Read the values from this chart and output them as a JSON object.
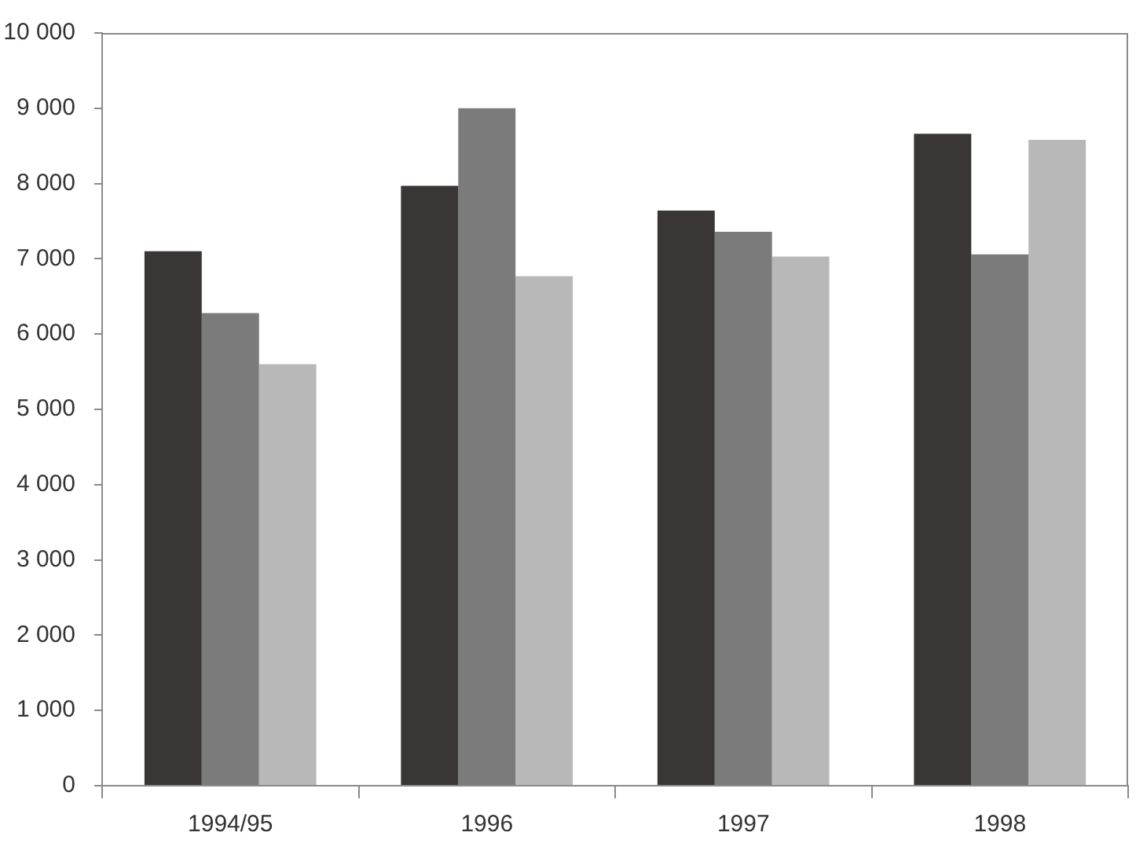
{
  "chart_data": {
    "type": "bar",
    "categories": [
      "1994/95",
      "1996",
      "1997",
      "1998"
    ],
    "series": [
      {
        "color": "#3a3636",
        "values": [
          7100,
          7970,
          7640,
          8660
        ]
      },
      {
        "color": "#7b7b7b",
        "values": [
          6280,
          9000,
          7360,
          7060
        ]
      },
      {
        "color": "#b8b8b8",
        "values": [
          5600,
          6770,
          7030,
          8580
        ]
      }
    ],
    "ylim": [
      0,
      10000
    ],
    "yticks": [
      0,
      {
        "value": 1000,
        "label": "1 000"
      },
      {
        "value": 2000,
        "label": "2 000"
      },
      {
        "value": 3000,
        "label": "3 000"
      },
      {
        "value": 4000,
        "label": "4 000"
      },
      {
        "value": 5000,
        "label": "5 000"
      },
      {
        "value": 6000,
        "label": "6 000"
      },
      {
        "value": 7000,
        "label": "7 000"
      },
      {
        "value": 8000,
        "label": "8 000"
      },
      {
        "value": 9000,
        "label": "9 000"
      },
      {
        "value": 10000,
        "label": "10 000"
      }
    ]
  }
}
